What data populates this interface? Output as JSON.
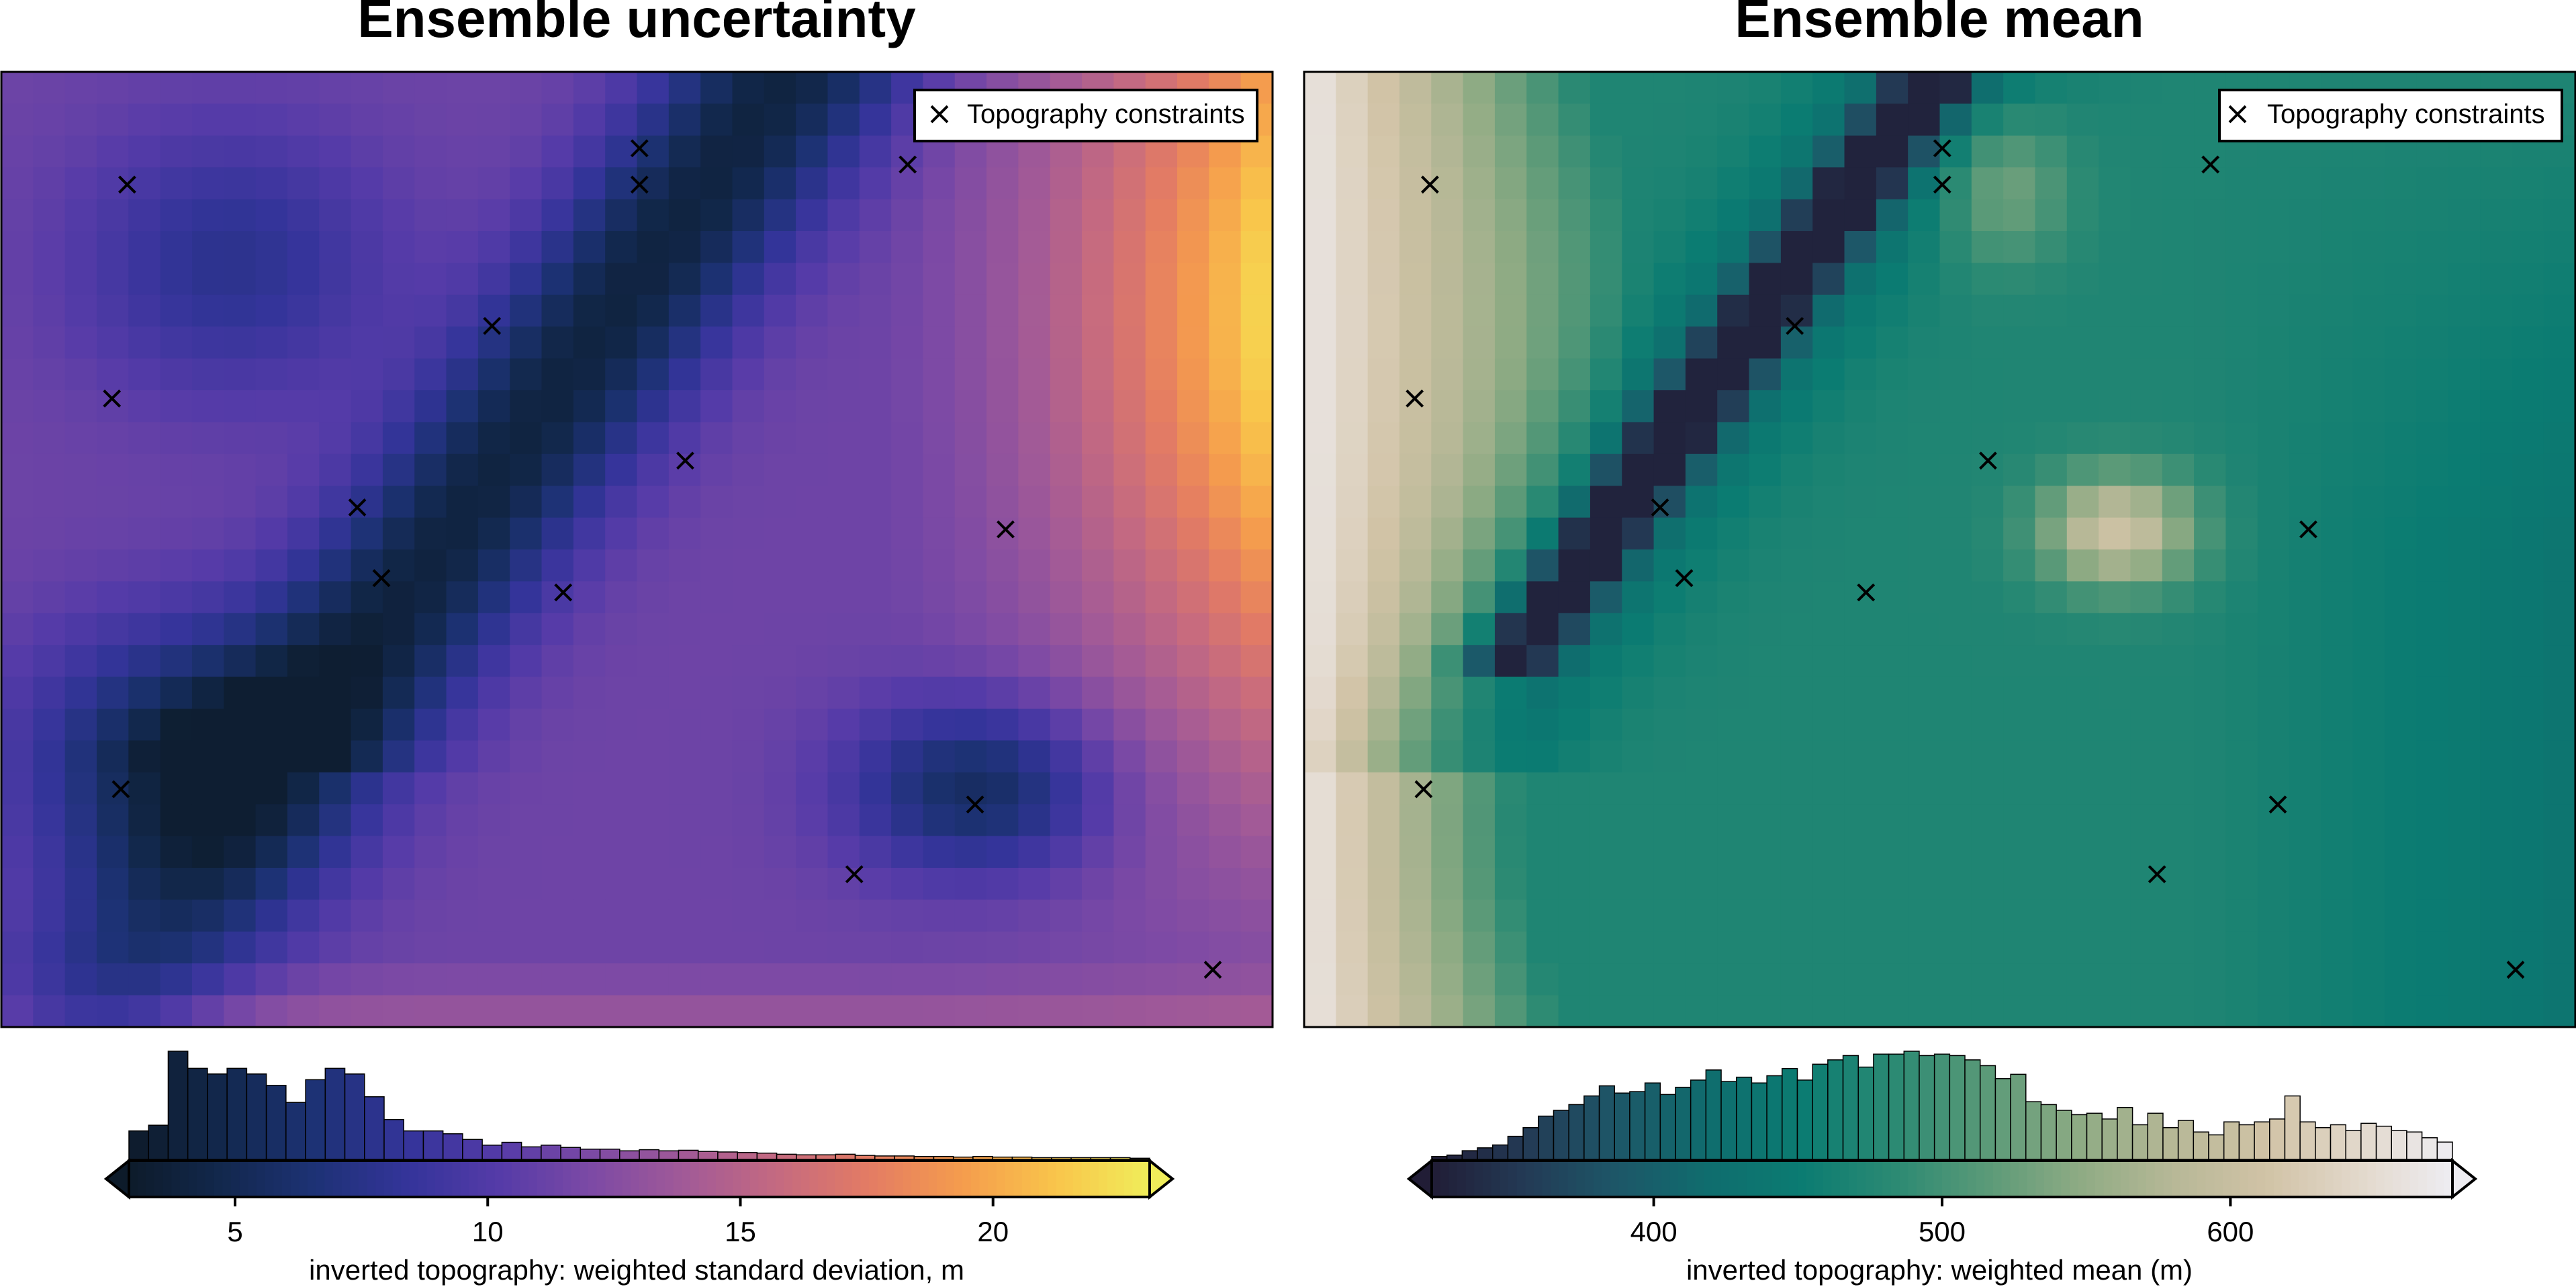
{
  "chart_data": [
    {
      "type": "heatmap",
      "title": "Ensemble uncertainty",
      "legend_label": "Topography constraints",
      "legend_position": "top-right",
      "colorbar": {
        "label": "inverted topography: weighted standard deviation, m",
        "min": 2.9,
        "max": 23.1,
        "ticks": [
          5,
          10,
          15,
          20
        ],
        "tick_labels": [
          "5",
          "10",
          "15",
          "20"
        ],
        "colormap": [
          "#0d1b2a",
          "#12284d",
          "#1d3275",
          "#34349a",
          "#553ba8",
          "#7d4aa5",
          "#a25a97",
          "#c56a80",
          "#e47c63",
          "#f59d4d",
          "#f9c54b",
          "#f0ed5a"
        ],
        "histogram": [
          5,
          6,
          19,
          16,
          15,
          16,
          15,
          13,
          10,
          14,
          16,
          15,
          11,
          7,
          5,
          5,
          4.5,
          3.5,
          2.5,
          3,
          2.2,
          2.5,
          2.1,
          1.8,
          1.8,
          1.5,
          1.7,
          1.5,
          1.6,
          1.4,
          1.3,
          1.2,
          1.1,
          0.9,
          0.8,
          0.8,
          0.9,
          0.7,
          0.6,
          0.6,
          0.5,
          0.5,
          0.4,
          0.5,
          0.4,
          0.4,
          0.3,
          0.3,
          0.3,
          0.3,
          0.3,
          0.2
        ]
      }
    },
    {
      "type": "heatmap",
      "title": "Ensemble mean",
      "legend_label": "Topography constraints",
      "legend_position": "top-right",
      "colorbar": {
        "label": "inverted topography: weighted mean (m)",
        "min": 323,
        "max": 677,
        "ticks": [
          400,
          500,
          600
        ],
        "tick_labels": [
          "400",
          "500",
          "600"
        ],
        "colormap": [
          "#211d36",
          "#233a55",
          "#1d5768",
          "#0f6d6e",
          "#0b7c72",
          "#2c8a73",
          "#5b9a78",
          "#8fab84",
          "#b7b897",
          "#d1c3a6",
          "#e2d8cb",
          "#eeedf2"
        ],
        "histogram": [
          0.2,
          0.3,
          0.6,
          0.8,
          1.0,
          1.6,
          2.2,
          3.0,
          3.4,
          3.8,
          4.4,
          5.1,
          4.6,
          4.7,
          5.3,
          4.5,
          5.0,
          5.5,
          6.2,
          5.4,
          5.7,
          5.3,
          5.8,
          6.3,
          5.5,
          6.6,
          6.9,
          7.2,
          6.4,
          7.3,
          7.3,
          7.5,
          7.2,
          7.3,
          7.2,
          6.9,
          6.5,
          5.6,
          5.9,
          4.0,
          3.8,
          3.4,
          3.1,
          3.2,
          2.8,
          3.6,
          2.4,
          3.2,
          2.2,
          2.7,
          1.9,
          1.7,
          2.6,
          2.4,
          2.6,
          2.8,
          4.4,
          2.6,
          2.2,
          2.4,
          2.0,
          2.5,
          2.3,
          2.0,
          1.9,
          1.5,
          1.2
        ]
      }
    }
  ]
}
